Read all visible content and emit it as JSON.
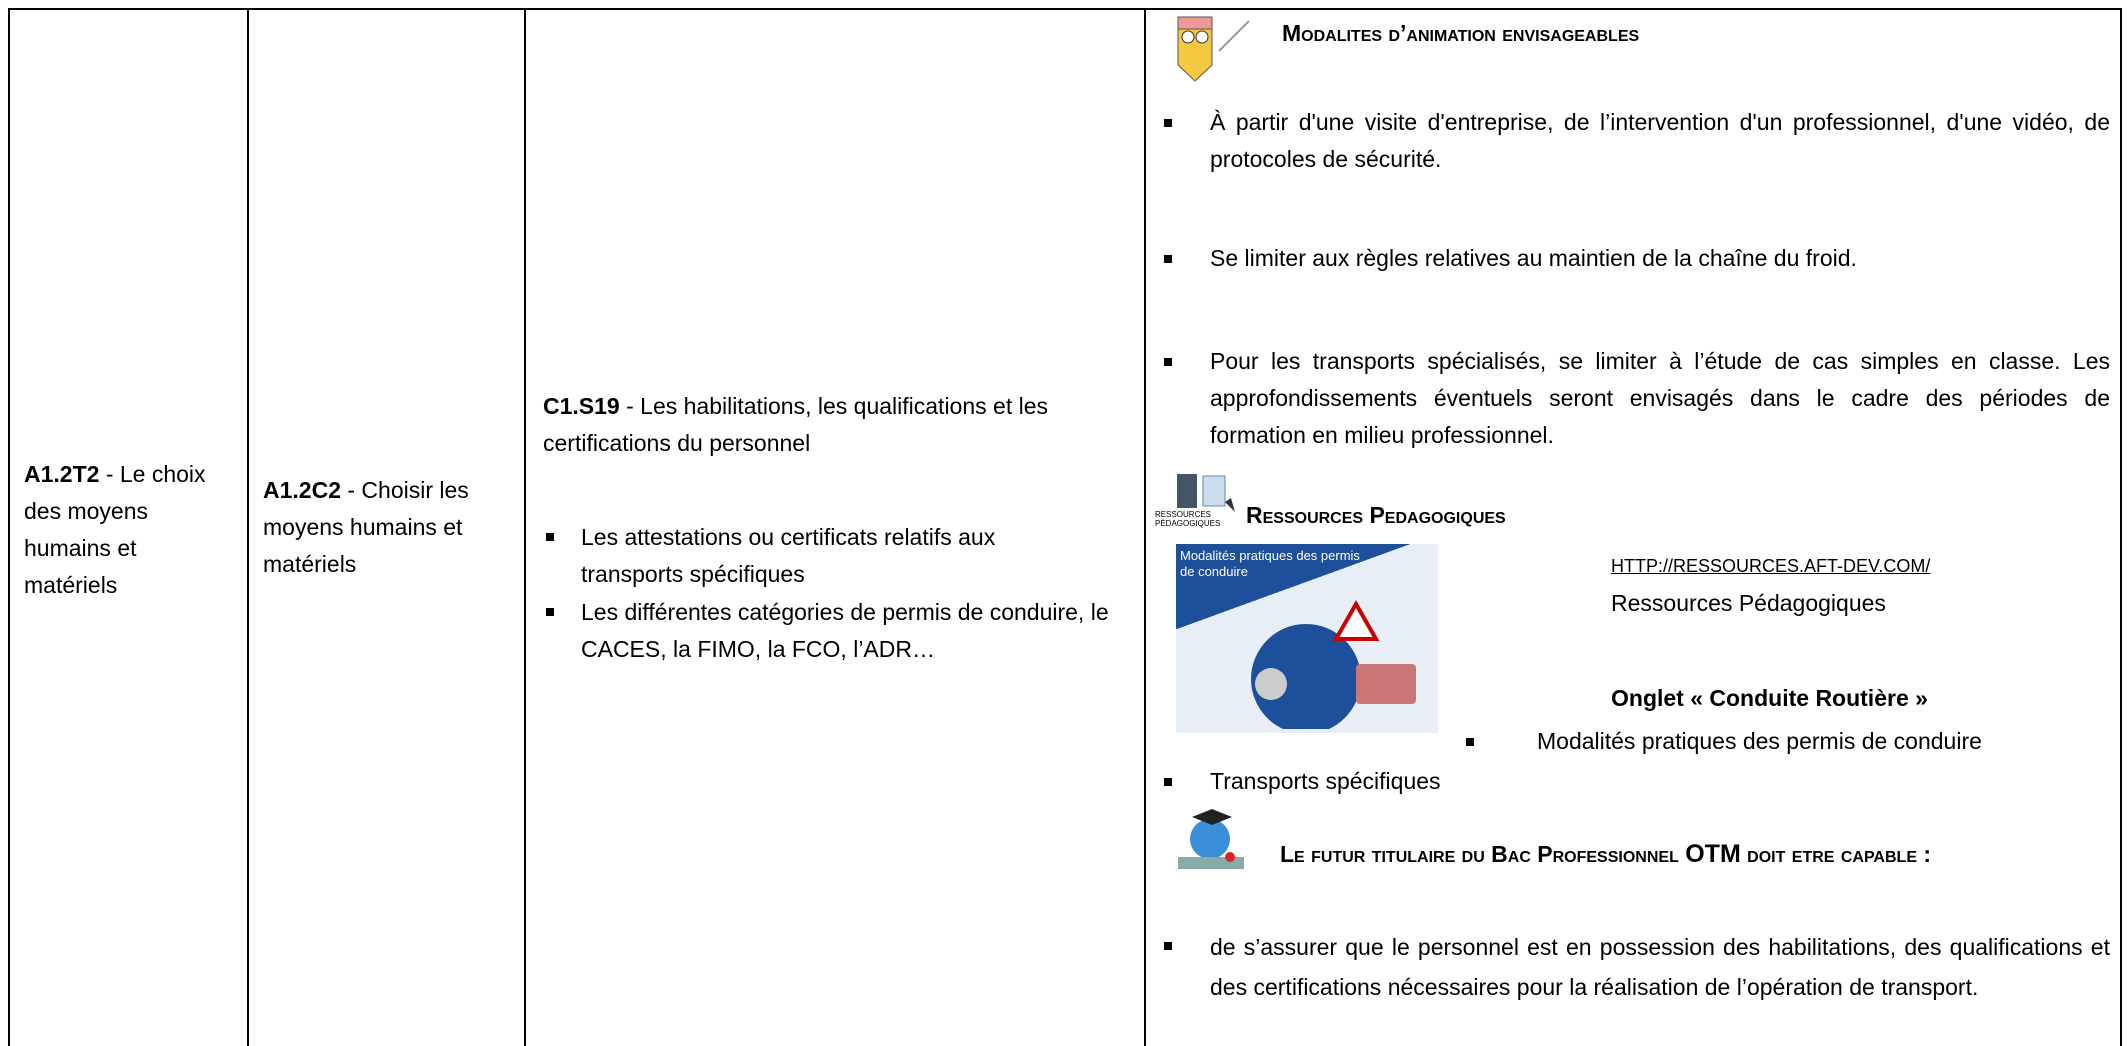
{
  "col1": {
    "code": "A1.2T2",
    "text": " - Le choix des moyens humains et matériels"
  },
  "col2": {
    "code": "A1.2C2",
    "text": " - Choisir les moyens humains et matériels"
  },
  "col3": {
    "code": "C1.S19",
    "text": " - Les habilitations, les qualifications et les certifications du personnel",
    "bullets": [
      "Les attestations ou certificats relatifs aux transports spécifiques",
      "Les différentes catégories de permis de conduire, le CACES, la FIMO, la FCO, l’ADR…"
    ]
  },
  "col4": {
    "modalites": {
      "title": "Modalites d’animation envisageables",
      "bullets": [
        "À partir d'une visite d'entreprise, de l’intervention d'un professionnel, d'une vidéo, de protocoles de sécurité.",
        "Se limiter aux règles relatives au maintien de la chaîne du froid.",
        "Pour les transports spécialisés, se limiter à l’étude de cas simples en classe. Les approfondissements éventuels seront envisagés dans le cadre des périodes de formation en milieu professionnel."
      ]
    },
    "ressources": {
      "icon_label": "Ressources Pédagogiques",
      "title": "Ressources Pedagogiques",
      "image_caption": "Modalités pratiques des permis de conduire",
      "url": "http://ressources.aft-dev.com/",
      "site": "Ressources Pédagogiques",
      "tab": "Onglet « Conduite Routière »",
      "tab_bullets": [
        "Modalités pratiques des permis de conduire"
      ],
      "bullets": [
        "Transports spécifiques"
      ]
    },
    "capable": {
      "title_parts": [
        "Le futur titulaire du ",
        "Bac Professionnel ",
        "OTM",
        " doit etre capable :"
      ],
      "bullets": [
        "de s’assurer que le personnel est en possession des habilitations, des qualifications et des certifications nécessaires pour la réalisation de l’opération de transport."
      ]
    }
  }
}
